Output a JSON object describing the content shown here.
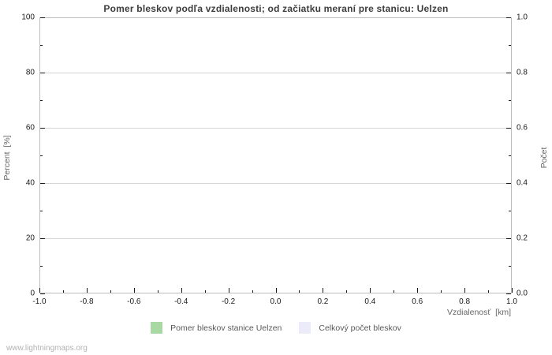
{
  "page": {
    "watermark": "www.lightningmaps.org"
  },
  "colors": {
    "background": "#ffffff",
    "plot_border": "#bdbdbd",
    "gridline": "#d4d4d4",
    "tick": "#1a1a1a",
    "title_text": "#3d3d3d",
    "tick_label": "#1a1a1a",
    "axis_label": "#666666",
    "legend_text": "#595959",
    "watermark_text": "#b3b3b3",
    "legend_green": "#a9d9a3",
    "legend_lavender": "#ebebfa"
  },
  "chart_data": {
    "type": "bar",
    "title": "Pomer bleskov podľa vzdialenosti; od začiatku meraní pre stanicu: Uelzen",
    "xlabel": "Vzdialenosť  [km]",
    "ylabel_left": "Percent  [%]",
    "ylabel_right": "Počet",
    "xlim": [
      -1.0,
      1.0
    ],
    "ylim_left": [
      0,
      100
    ],
    "ylim_right": [
      0.0,
      1.0
    ],
    "x_major_ticks": [
      -1.0,
      -0.8,
      -0.6,
      -0.4,
      -0.2,
      0.0,
      0.2,
      0.4,
      0.6,
      0.8,
      1.0
    ],
    "x_minor_ticks": [
      -0.9,
      -0.7,
      -0.5,
      -0.3,
      -0.1,
      0.1,
      0.3,
      0.5,
      0.7,
      0.9
    ],
    "y_left_major_ticks": [
      0,
      20,
      40,
      60,
      80,
      100
    ],
    "y_left_minor_ticks": [
      10,
      30,
      50,
      70,
      90
    ],
    "y_right_major_ticks": [
      0.0,
      0.2,
      0.4,
      0.6,
      0.8,
      1.0
    ],
    "y_right_minor_ticks": [
      0.1,
      0.3,
      0.5,
      0.7,
      0.9
    ],
    "grid": "horizontal-major-only",
    "legend_position": "bottom-center",
    "series": [
      {
        "name": "Pomer bleskov stanice Uelzen",
        "color": "#a9d9a3",
        "values": []
      },
      {
        "name": "Celkový počet bleskov",
        "color": "#ebebfa",
        "values": []
      }
    ]
  }
}
